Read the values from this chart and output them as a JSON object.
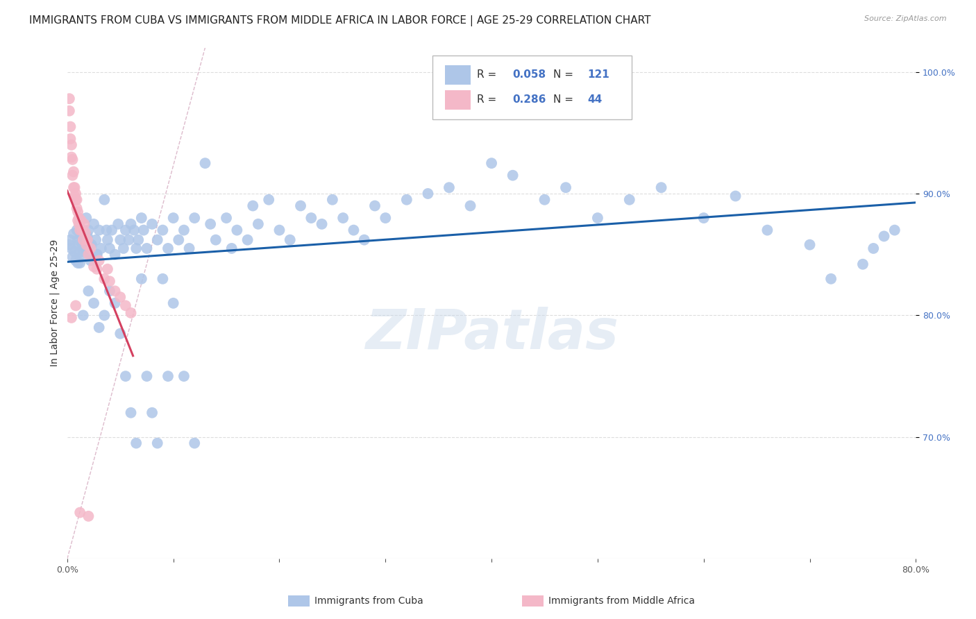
{
  "title": "IMMIGRANTS FROM CUBA VS IMMIGRANTS FROM MIDDLE AFRICA IN LABOR FORCE | AGE 25-29 CORRELATION CHART",
  "source_text": "Source: ZipAtlas.com",
  "ylabel": "In Labor Force | Age 25-29",
  "xlim": [
    0.0,
    0.8
  ],
  "ylim": [
    0.6,
    1.02
  ],
  "x_ticks": [
    0.0,
    0.1,
    0.2,
    0.3,
    0.4,
    0.5,
    0.6,
    0.7,
    0.8
  ],
  "x_tick_labels": [
    "0.0%",
    "",
    "",
    "",
    "",
    "",
    "",
    "",
    "80.0%"
  ],
  "y_ticks": [
    0.7,
    0.8,
    0.9,
    1.0
  ],
  "y_tick_labels": [
    "70.0%",
    "80.0%",
    "90.0%",
    "100.0%"
  ],
  "legend_blue_r": "0.058",
  "legend_blue_n": "121",
  "legend_pink_r": "0.286",
  "legend_pink_n": "44",
  "legend_blue_label": "Immigrants from Cuba",
  "legend_pink_label": "Immigrants from Middle Africa",
  "blue_color": "#aec6e8",
  "pink_color": "#f4b8c8",
  "blue_line_color": "#1a5fa8",
  "pink_line_color": "#d44060",
  "watermark": "ZIPatlas",
  "background_color": "#ffffff",
  "grid_color": "#dddddd",
  "title_fontsize": 11,
  "label_fontsize": 10,
  "tick_fontsize": 9,
  "blue_scatter_x": [
    0.002,
    0.003,
    0.004,
    0.005,
    0.006,
    0.007,
    0.008,
    0.009,
    0.01,
    0.011,
    0.012,
    0.013,
    0.014,
    0.015,
    0.016,
    0.017,
    0.018,
    0.019,
    0.02,
    0.021,
    0.022,
    0.023,
    0.025,
    0.027,
    0.028,
    0.03,
    0.032,
    0.035,
    0.037,
    0.038,
    0.04,
    0.042,
    0.045,
    0.048,
    0.05,
    0.053,
    0.055,
    0.058,
    0.06,
    0.063,
    0.065,
    0.067,
    0.07,
    0.072,
    0.075,
    0.08,
    0.085,
    0.09,
    0.095,
    0.1,
    0.105,
    0.11,
    0.115,
    0.12,
    0.13,
    0.135,
    0.14,
    0.15,
    0.155,
    0.16,
    0.17,
    0.175,
    0.18,
    0.19,
    0.2,
    0.21,
    0.22,
    0.23,
    0.24,
    0.25,
    0.26,
    0.27,
    0.28,
    0.29,
    0.3,
    0.32,
    0.34,
    0.36,
    0.38,
    0.4,
    0.42,
    0.45,
    0.47,
    0.5,
    0.53,
    0.56,
    0.6,
    0.63,
    0.66,
    0.7,
    0.72,
    0.75,
    0.76,
    0.77,
    0.78,
    0.015,
    0.02,
    0.025,
    0.03,
    0.035,
    0.04,
    0.045,
    0.05,
    0.055,
    0.06,
    0.065,
    0.07,
    0.075,
    0.08,
    0.085,
    0.09,
    0.095,
    0.1,
    0.11,
    0.12,
    0.01,
    0.012,
    0.015,
    0.018,
    0.022,
    0.028
  ],
  "blue_scatter_y": [
    0.858,
    0.862,
    0.855,
    0.848,
    0.867,
    0.852,
    0.845,
    0.87,
    0.862,
    0.858,
    0.852,
    0.865,
    0.857,
    0.87,
    0.862,
    0.855,
    0.88,
    0.865,
    0.87,
    0.85,
    0.845,
    0.858,
    0.875,
    0.862,
    0.85,
    0.87,
    0.855,
    0.895,
    0.87,
    0.862,
    0.855,
    0.87,
    0.85,
    0.875,
    0.862,
    0.855,
    0.87,
    0.862,
    0.875,
    0.87,
    0.855,
    0.862,
    0.88,
    0.87,
    0.855,
    0.875,
    0.862,
    0.87,
    0.855,
    0.88,
    0.862,
    0.87,
    0.855,
    0.88,
    0.925,
    0.875,
    0.862,
    0.88,
    0.855,
    0.87,
    0.862,
    0.89,
    0.875,
    0.895,
    0.87,
    0.862,
    0.89,
    0.88,
    0.875,
    0.895,
    0.88,
    0.87,
    0.862,
    0.89,
    0.88,
    0.895,
    0.9,
    0.905,
    0.89,
    0.925,
    0.915,
    0.895,
    0.905,
    0.88,
    0.895,
    0.905,
    0.88,
    0.898,
    0.87,
    0.858,
    0.83,
    0.842,
    0.855,
    0.865,
    0.87,
    0.8,
    0.82,
    0.81,
    0.79,
    0.8,
    0.82,
    0.81,
    0.785,
    0.75,
    0.72,
    0.695,
    0.83,
    0.75,
    0.72,
    0.695,
    0.83,
    0.75,
    0.81,
    0.75,
    0.695,
    0.843,
    0.843,
    0.85,
    0.865,
    0.858,
    0.85
  ],
  "pink_scatter_x": [
    0.002,
    0.002,
    0.003,
    0.003,
    0.004,
    0.004,
    0.005,
    0.005,
    0.006,
    0.006,
    0.007,
    0.007,
    0.008,
    0.008,
    0.009,
    0.009,
    0.01,
    0.01,
    0.011,
    0.011,
    0.012,
    0.013,
    0.014,
    0.015,
    0.016,
    0.017,
    0.018,
    0.019,
    0.02,
    0.022,
    0.025,
    0.028,
    0.03,
    0.035,
    0.038,
    0.04,
    0.045,
    0.05,
    0.055,
    0.06,
    0.004,
    0.008,
    0.012,
    0.02
  ],
  "pink_scatter_y": [
    0.978,
    0.968,
    0.955,
    0.945,
    0.94,
    0.93,
    0.928,
    0.915,
    0.918,
    0.905,
    0.898,
    0.905,
    0.895,
    0.9,
    0.888,
    0.895,
    0.885,
    0.878,
    0.88,
    0.875,
    0.87,
    0.878,
    0.87,
    0.862,
    0.875,
    0.868,
    0.858,
    0.862,
    0.85,
    0.855,
    0.84,
    0.838,
    0.845,
    0.83,
    0.838,
    0.828,
    0.82,
    0.815,
    0.808,
    0.802,
    0.798,
    0.808,
    0.638,
    0.635
  ]
}
